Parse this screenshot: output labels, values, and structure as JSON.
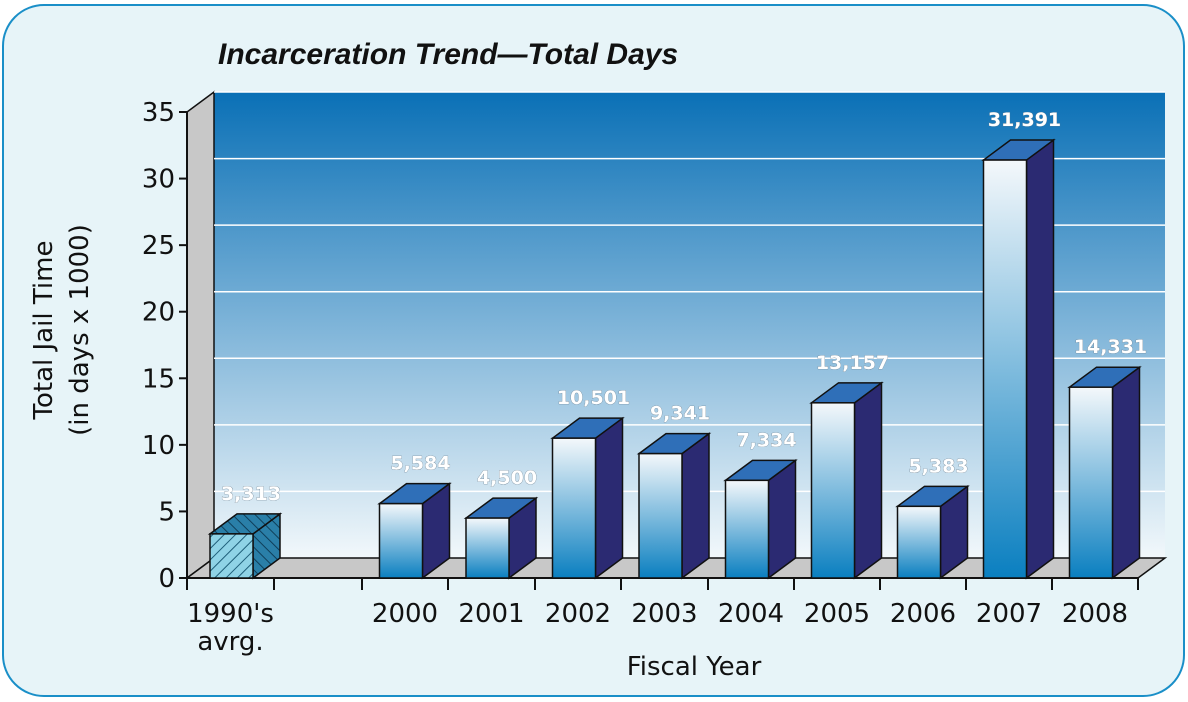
{
  "chart_data": {
    "type": "bar",
    "title": "Incarceration Trend—Total Days",
    "xlabel": "Fiscal Year",
    "ylabel": [
      "Total Jail Time",
      "(in days x 1000)"
    ],
    "ylim": [
      0,
      35
    ],
    "yticks": [
      "0",
      "5",
      "10",
      "15",
      "20",
      "25",
      "30",
      "35"
    ],
    "grid": true,
    "categories": [
      [
        "1990's",
        "avrg."
      ],
      [
        "2000"
      ],
      [
        "2001"
      ],
      [
        "2002"
      ],
      [
        "2003"
      ],
      [
        "2004"
      ],
      [
        "2005"
      ],
      [
        "2006"
      ],
      [
        "2007"
      ],
      [
        "2008"
      ]
    ],
    "values": [
      3.313,
      5.584,
      4.5,
      10.501,
      9.341,
      7.334,
      13.157,
      5.383,
      31.391,
      14.331
    ],
    "labels": [
      "3,313",
      "5,584",
      "4,500",
      "10,501",
      "9,341",
      "7,334",
      "13,157",
      "5,383",
      "31,391",
      "14,331"
    ],
    "colors": {
      "bar_front_top": "#f4f8fb",
      "bar_front_bottom": "#0a7fc0",
      "bar_side": "#2b2a72",
      "bar_top": "#2f6fb8",
      "baseline_bar_front": "#8fd3e6",
      "baseline_bar_side": "#2a7fa8",
      "plot_top": "#0a70b6",
      "plot_bottom": "#f2f8fb",
      "wall_side": "#c8c8c8",
      "floor": "#c8c8c8",
      "title": "#111111",
      "frame_border": "#1a8fc8",
      "frame_fill": "#e7f4f8"
    }
  }
}
